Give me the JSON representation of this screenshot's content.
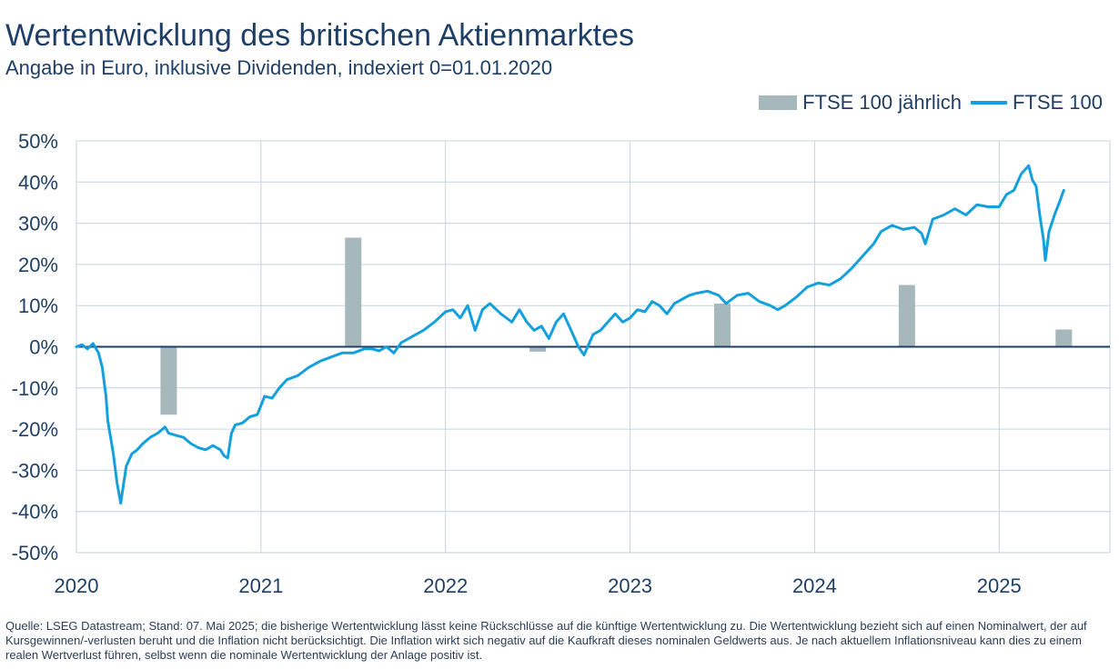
{
  "header": {
    "title": "Wertentwicklung des britischen Aktienmarktes",
    "subtitle": "Angabe in Euro, inklusive Dividenden, indexiert 0=01.01.2020"
  },
  "legend": {
    "items": [
      {
        "label": "FTSE 100 jährlich",
        "type": "bar",
        "color": "#a6b8bb"
      },
      {
        "label": "FTSE 100",
        "type": "line",
        "color": "#14a0dd"
      }
    ]
  },
  "footnote": "Quelle: LSEG Datastream; Stand: 07. Mai 2025; die bisherige Wertentwicklung lässt keine Rückschlüsse auf die künftige Wertentwicklung zu. Die Wertentwicklung bezieht sich auf einen Nominalwert, der auf Kursgewinnen/-verlusten beruht und die Inflation nicht berücksichtigt. Die Inflation wirkt sich negativ auf die Kaufkraft dieses nominalen Geldwerts aus. Je nach aktuellem Inflationsniveau kann dies zu einem realen Wertverlust führen, selbst wenn die nominale Wertentwicklung der Anlage positiv ist.",
  "chart_data": {
    "type": "line",
    "title": "Wertentwicklung des britischen Aktienmarktes",
    "subtitle": "Angabe in Euro, inklusive Dividenden, indexiert 0=01.01.2020",
    "xlabel": "",
    "ylabel": "",
    "xlim": [
      2020.0,
      2025.6
    ],
    "ylim": [
      -50,
      50
    ],
    "x_ticks": [
      2020,
      2021,
      2022,
      2023,
      2024,
      2025
    ],
    "x_tick_labels": [
      "2020",
      "2021",
      "2022",
      "2023",
      "2024",
      "2025"
    ],
    "y_ticks": [
      -50,
      -40,
      -30,
      -20,
      -10,
      0,
      10,
      20,
      30,
      40,
      50
    ],
    "y_tick_labels": [
      "-50%",
      "-40%",
      "-30%",
      "-20%",
      "-10%",
      "0%",
      "10%",
      "20%",
      "30%",
      "40%",
      "50%"
    ],
    "grid": true,
    "legend_position": "top-right",
    "colors": {
      "line": "#14a0dd",
      "bar": "#a6b8bb",
      "zero_line": "#1f3f66",
      "grid": "#c5d3db"
    },
    "series": [
      {
        "name": "FTSE 100 jährlich",
        "type": "bar",
        "x": [
          2020.5,
          2021.5,
          2022.5,
          2023.5,
          2024.5,
          2025.35
        ],
        "values": [
          -16.5,
          26.5,
          -1.2,
          10.5,
          15.0,
          4.2
        ]
      },
      {
        "name": "FTSE 100",
        "type": "line",
        "x": [
          2020.0,
          2020.03,
          2020.06,
          2020.09,
          2020.12,
          2020.14,
          2020.16,
          2020.17,
          2020.2,
          2020.22,
          2020.24,
          2020.25,
          2020.27,
          2020.3,
          2020.33,
          2020.36,
          2020.4,
          2020.44,
          2020.48,
          2020.5,
          2020.54,
          2020.58,
          2020.62,
          2020.66,
          2020.7,
          2020.74,
          2020.78,
          2020.8,
          2020.82,
          2020.84,
          2020.86,
          2020.9,
          2020.94,
          2020.98,
          2021.02,
          2021.06,
          2021.1,
          2021.14,
          2021.2,
          2021.26,
          2021.32,
          2021.38,
          2021.44,
          2021.5,
          2021.56,
          2021.6,
          2021.64,
          2021.68,
          2021.72,
          2021.76,
          2021.82,
          2021.88,
          2021.94,
          2022.0,
          2022.04,
          2022.08,
          2022.12,
          2022.16,
          2022.2,
          2022.24,
          2022.3,
          2022.36,
          2022.4,
          2022.44,
          2022.48,
          2022.52,
          2022.56,
          2022.6,
          2022.64,
          2022.68,
          2022.72,
          2022.75,
          2022.8,
          2022.84,
          2022.88,
          2022.92,
          2022.96,
          2023.0,
          2023.04,
          2023.08,
          2023.12,
          2023.16,
          2023.2,
          2023.24,
          2023.28,
          2023.32,
          2023.36,
          2023.42,
          2023.48,
          2023.52,
          2023.58,
          2023.64,
          2023.7,
          2023.76,
          2023.8,
          2023.84,
          2023.9,
          2023.96,
          2024.02,
          2024.08,
          2024.14,
          2024.2,
          2024.26,
          2024.32,
          2024.36,
          2024.42,
          2024.48,
          2024.54,
          2024.58,
          2024.6,
          2024.64,
          2024.7,
          2024.76,
          2024.82,
          2024.88,
          2024.94,
          2025.0,
          2025.04,
          2025.08,
          2025.12,
          2025.16,
          2025.18,
          2025.2,
          2025.22,
          2025.24,
          2025.25,
          2025.27,
          2025.3,
          2025.33,
          2025.35
        ],
        "values": [
          0,
          0.5,
          -0.5,
          0.8,
          -1.5,
          -5,
          -12,
          -18,
          -26,
          -33,
          -38,
          -35,
          -29,
          -26,
          -25,
          -23.5,
          -22,
          -21,
          -19.5,
          -21,
          -21.5,
          -22,
          -23.5,
          -24.5,
          -25,
          -24,
          -25,
          -26.5,
          -27,
          -21,
          -19,
          -18.5,
          -17,
          -16.5,
          -12,
          -12.5,
          -10,
          -8,
          -7,
          -5,
          -3.5,
          -2.5,
          -1.5,
          -1.5,
          -0.5,
          -0.5,
          -1,
          0,
          -1.5,
          1,
          2.5,
          4,
          6,
          8.5,
          9,
          7,
          10,
          4,
          9,
          10.5,
          8,
          6,
          9,
          6,
          4,
          5,
          2,
          6,
          8,
          4,
          0,
          -2,
          3,
          4,
          6,
          8,
          6,
          7,
          9,
          8.5,
          11,
          10,
          8,
          10.5,
          11.5,
          12.5,
          13,
          13.5,
          12.5,
          10.5,
          12.5,
          13,
          11,
          10,
          9,
          10,
          12,
          14.5,
          15.5,
          15,
          16.5,
          19,
          22,
          25,
          28,
          29.5,
          28.5,
          29,
          27.5,
          25,
          31,
          32,
          33.5,
          32,
          34.5,
          34,
          34,
          37,
          38,
          42,
          44,
          40.5,
          39,
          32,
          26,
          21,
          28,
          32,
          35.5,
          38
        ]
      }
    ]
  }
}
